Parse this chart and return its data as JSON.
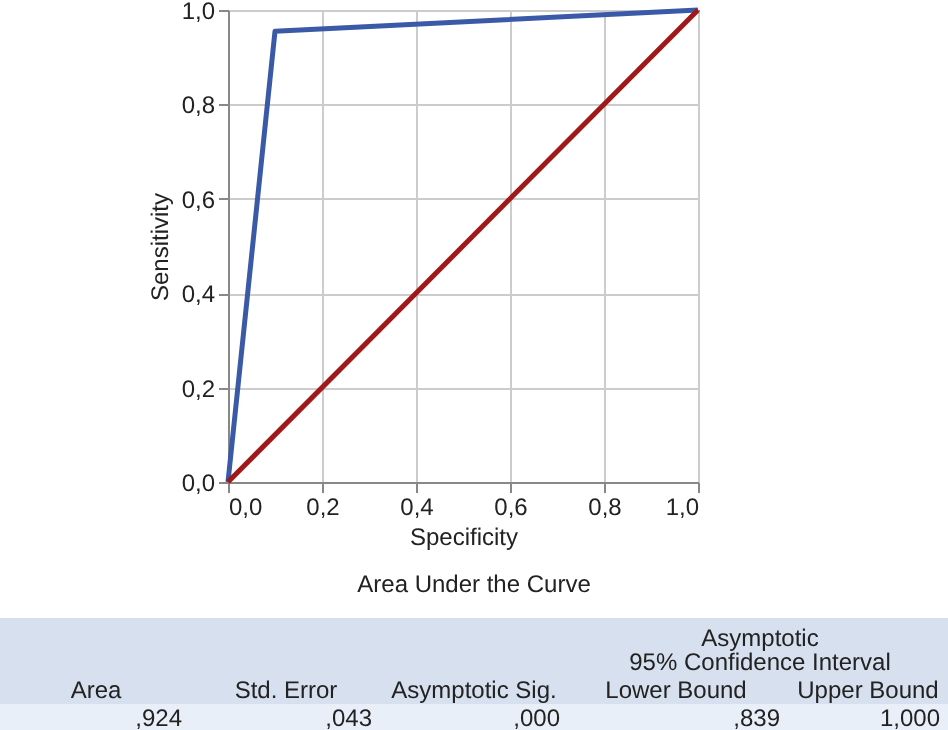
{
  "chart_data": {
    "type": "line",
    "xlabel": "Specificity",
    "ylabel": "Sensitivity",
    "xlim": [
      0,
      1
    ],
    "ylim": [
      0,
      1
    ],
    "xticks": [
      {
        "value": 0,
        "label": "0,0"
      },
      {
        "value": 0.2,
        "label": "0,2"
      },
      {
        "value": 0.4,
        "label": "0,4"
      },
      {
        "value": 0.6,
        "label": "0,6"
      },
      {
        "value": 0.8,
        "label": "0,8"
      },
      {
        "value": 1,
        "label": "1,0"
      }
    ],
    "yticks": [
      {
        "value": 0,
        "label": "0,0"
      },
      {
        "value": 0.2,
        "label": "0,2"
      },
      {
        "value": 0.4,
        "label": "0,4"
      },
      {
        "value": 0.6,
        "label": "0,6"
      },
      {
        "value": 0.8,
        "label": "0,8"
      },
      {
        "value": 1,
        "label": "1,0"
      }
    ],
    "grid": true,
    "marker": "none",
    "line_style": "solid",
    "series": [
      {
        "color": "#3a5aa8",
        "x": [
          0,
          0.1,
          1
        ],
        "values": [
          0,
          0.955,
          1
        ]
      },
      {
        "color": "#a01818",
        "x": [
          0,
          1
        ],
        "values": [
          0,
          1
        ]
      }
    ],
    "annotations": [
      "Area Under the Curve",
      "Asymptotic",
      "95% Confidence Interval",
      "Area",
      "Std. Error",
      "Asymptotic Sig.",
      "Lower Bound",
      "Upper Bound",
      ",924",
      ",043",
      ",000",
      ",839",
      "1,000"
    ]
  }
}
